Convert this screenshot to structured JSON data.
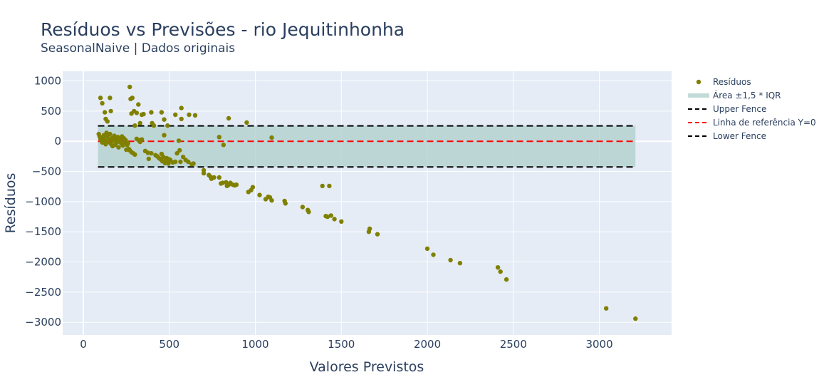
{
  "chart_data": {
    "type": "scatter",
    "title": "Resíduos vs Previsões - rio Jequitinhonha",
    "subtitle": "SeasonalNaive | Dados originais",
    "xlabel": "Valores Previstos",
    "ylabel": "Resíduos",
    "xlim": [
      -120,
      3420
    ],
    "ylim": [
      -3210,
      1160
    ],
    "xticks": [
      0,
      500,
      1000,
      1500,
      2000,
      2500,
      3000
    ],
    "xtick_labels": [
      "0",
      "500",
      "1000",
      "1500",
      "2000",
      "2500",
      "3000"
    ],
    "yticks": [
      1000,
      500,
      0,
      -500,
      -1000,
      -1500,
      -2000,
      -2500,
      -3000
    ],
    "ytick_labels": [
      "1000",
      "500",
      "0",
      "−500",
      "−1000",
      "−1500",
      "−2000",
      "−2500",
      "−3000"
    ],
    "grid": true,
    "legend_position": "right",
    "colors": {
      "points": "#808000",
      "band": "#aecfcb",
      "zero_line": "#ff0000",
      "fences": "#000000",
      "plot_bg": "#e5ecf6"
    },
    "fences": {
      "upper": 255,
      "lower": -425,
      "x_range": [
        85,
        3210
      ]
    },
    "reference_line": {
      "y": 0,
      "x_range": [
        85,
        3210
      ]
    },
    "legend": [
      {
        "name": "Resíduos",
        "kind": "marker"
      },
      {
        "name": "Área ±1,5 * IQR",
        "kind": "band"
      },
      {
        "name": "Upper Fence",
        "kind": "dash-black"
      },
      {
        "name": "Linha de referência Y=0",
        "kind": "dash-red"
      },
      {
        "name": "Lower Fence",
        "kind": "dash-black"
      }
    ],
    "series": [
      {
        "name": "Resíduos",
        "points": [
          [
            100,
            720
          ],
          [
            110,
            630
          ],
          [
            125,
            480
          ],
          [
            130,
            370
          ],
          [
            140,
            330
          ],
          [
            155,
            720
          ],
          [
            160,
            500
          ],
          [
            270,
            900
          ],
          [
            275,
            700
          ],
          [
            285,
            720
          ],
          [
            280,
            460
          ],
          [
            295,
            500
          ],
          [
            310,
            470
          ],
          [
            320,
            610
          ],
          [
            340,
            440
          ],
          [
            350,
            450
          ],
          [
            395,
            480
          ],
          [
            455,
            480
          ],
          [
            470,
            360
          ],
          [
            490,
            260
          ],
          [
            535,
            440
          ],
          [
            570,
            550
          ],
          [
            570,
            370
          ],
          [
            615,
            440
          ],
          [
            650,
            430
          ],
          [
            845,
            380
          ],
          [
            950,
            310
          ],
          [
            1095,
            60
          ],
          [
            790,
            70
          ],
          [
            815,
            -60
          ],
          [
            90,
            120
          ],
          [
            95,
            80
          ],
          [
            100,
            40
          ],
          [
            105,
            10
          ],
          [
            110,
            -20
          ],
          [
            115,
            60
          ],
          [
            120,
            100
          ],
          [
            125,
            20
          ],
          [
            130,
            -50
          ],
          [
            135,
            140
          ],
          [
            140,
            80
          ],
          [
            145,
            -10
          ],
          [
            150,
            30
          ],
          [
            155,
            120
          ],
          [
            160,
            -40
          ],
          [
            165,
            50
          ],
          [
            170,
            -80
          ],
          [
            175,
            10
          ],
          [
            180,
            90
          ],
          [
            185,
            -60
          ],
          [
            190,
            40
          ],
          [
            195,
            -20
          ],
          [
            200,
            70
          ],
          [
            205,
            -100
          ],
          [
            210,
            0
          ],
          [
            215,
            30
          ],
          [
            220,
            -30
          ],
          [
            225,
            80
          ],
          [
            230,
            -70
          ],
          [
            235,
            50
          ],
          [
            240,
            -10
          ],
          [
            245,
            20
          ],
          [
            250,
            -140
          ],
          [
            255,
            -60
          ],
          [
            260,
            -30
          ],
          [
            265,
            -130
          ],
          [
            270,
            -150
          ],
          [
            280,
            -180
          ],
          [
            290,
            -200
          ],
          [
            300,
            -220
          ],
          [
            310,
            40
          ],
          [
            320,
            20
          ],
          [
            330,
            -10
          ],
          [
            340,
            30
          ],
          [
            300,
            260
          ],
          [
            330,
            300
          ],
          [
            360,
            -160
          ],
          [
            375,
            -190
          ],
          [
            380,
            -290
          ],
          [
            395,
            -200
          ],
          [
            400,
            300
          ],
          [
            410,
            260
          ],
          [
            420,
            -230
          ],
          [
            430,
            -250
          ],
          [
            440,
            -280
          ],
          [
            450,
            -300
          ],
          [
            455,
            -210
          ],
          [
            460,
            -330
          ],
          [
            465,
            -260
          ],
          [
            470,
            100
          ],
          [
            475,
            -360
          ],
          [
            480,
            -320
          ],
          [
            485,
            -280
          ],
          [
            495,
            -370
          ],
          [
            500,
            -300
          ],
          [
            505,
            -310
          ],
          [
            520,
            -350
          ],
          [
            535,
            -340
          ],
          [
            545,
            -200
          ],
          [
            555,
            10
          ],
          [
            560,
            -150
          ],
          [
            565,
            -340
          ],
          [
            580,
            -260
          ],
          [
            595,
            -310
          ],
          [
            610,
            -340
          ],
          [
            630,
            -380
          ],
          [
            640,
            -370
          ],
          [
            700,
            -480
          ],
          [
            700,
            -530
          ],
          [
            730,
            -560
          ],
          [
            740,
            -590
          ],
          [
            745,
            -620
          ],
          [
            760,
            -600
          ],
          [
            790,
            -600
          ],
          [
            800,
            -700
          ],
          [
            810,
            -690
          ],
          [
            830,
            -680
          ],
          [
            835,
            -740
          ],
          [
            845,
            -720
          ],
          [
            855,
            -690
          ],
          [
            870,
            -720
          ],
          [
            880,
            -730
          ],
          [
            890,
            -720
          ],
          [
            960,
            -840
          ],
          [
            975,
            -810
          ],
          [
            985,
            -760
          ],
          [
            1025,
            -890
          ],
          [
            1060,
            -960
          ],
          [
            1075,
            -920
          ],
          [
            1085,
            -930
          ],
          [
            1095,
            -980
          ],
          [
            1170,
            -990
          ],
          [
            1175,
            -1030
          ],
          [
            1275,
            -1090
          ],
          [
            1305,
            -1140
          ],
          [
            1310,
            -1170
          ],
          [
            1390,
            -740
          ],
          [
            1430,
            -740
          ],
          [
            1410,
            -1240
          ],
          [
            1420,
            -1250
          ],
          [
            1440,
            -1230
          ],
          [
            1460,
            -1290
          ],
          [
            1500,
            -1330
          ],
          [
            1660,
            -1500
          ],
          [
            1665,
            -1450
          ],
          [
            1710,
            -1540
          ],
          [
            2000,
            -1780
          ],
          [
            2035,
            -1880
          ],
          [
            2135,
            -1970
          ],
          [
            2190,
            -2020
          ],
          [
            2410,
            -2090
          ],
          [
            2425,
            -2160
          ],
          [
            2460,
            -2290
          ],
          [
            3040,
            -2770
          ],
          [
            3210,
            -2940
          ]
        ]
      }
    ]
  }
}
